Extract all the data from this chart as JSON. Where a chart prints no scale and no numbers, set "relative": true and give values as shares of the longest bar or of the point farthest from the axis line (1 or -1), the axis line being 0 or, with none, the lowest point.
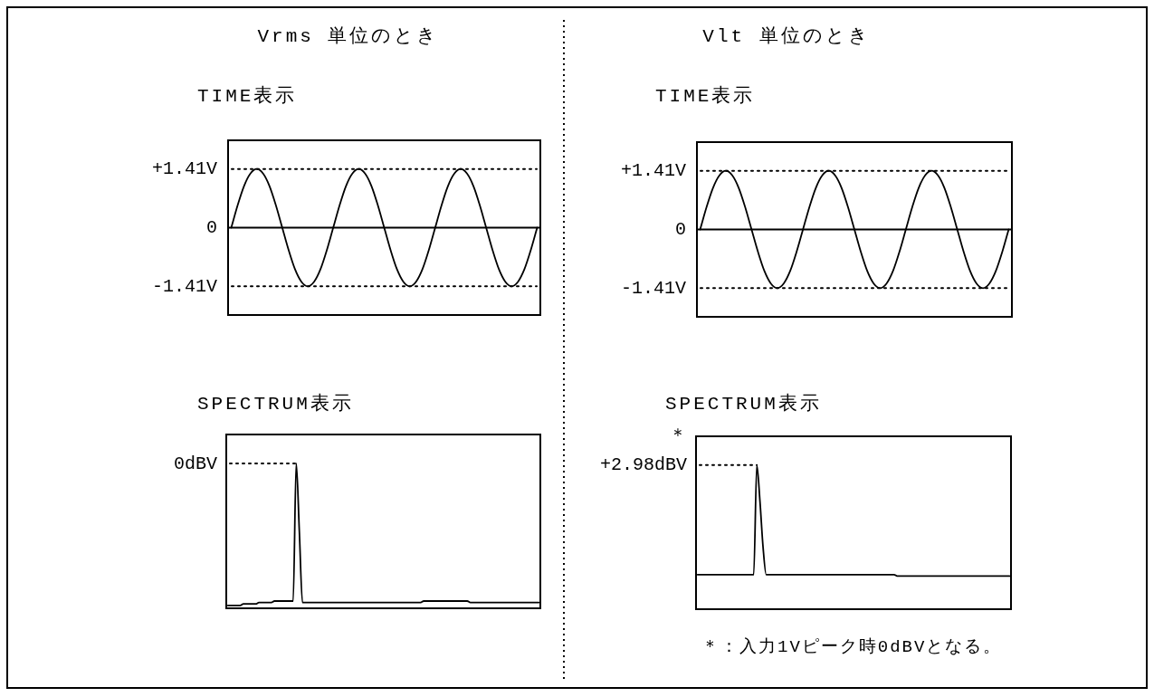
{
  "chart_data": [
    {
      "type": "line",
      "title": "Vrms 単位のとき",
      "subtitle": "TIME表示",
      "tick_labels": "y",
      "ylim": [
        -2.1,
        2.1
      ],
      "yticks": [
        {
          "value": 1.41,
          "label": "+1.41V"
        },
        {
          "value": 0,
          "label": "0"
        },
        {
          "value": -1.41,
          "label": "-1.41V"
        }
      ],
      "ref_lines": [
        {
          "axis": "y",
          "value": 1.41,
          "line_style": "dotted"
        },
        {
          "axis": "y",
          "value": 0,
          "line_style": "solid"
        },
        {
          "axis": "y",
          "value": -1.41,
          "line_style": "dotted"
        }
      ],
      "categories": [
        null,
        null,
        null,
        null,
        null,
        null,
        null,
        null,
        null,
        null,
        null,
        null,
        null,
        null,
        null,
        null,
        null,
        null,
        null,
        null,
        null,
        null,
        null,
        null,
        null,
        null,
        null,
        null,
        null,
        null,
        null,
        null,
        null,
        null,
        null,
        null,
        null,
        null,
        null,
        null,
        null,
        null,
        null,
        null,
        null,
        null,
        null,
        null,
        null
      ],
      "series": [
        {
          "color": "#000000",
          "values": [
            0,
            0.54,
            1,
            1.3,
            1.41,
            1.3,
            1,
            0.54,
            0,
            -0.54,
            -1,
            -1.3,
            -1.41,
            -1.3,
            -1,
            -0.54,
            0,
            0.54,
            1,
            1.3,
            1.41,
            1.3,
            1,
            0.54,
            0,
            -0.54,
            -1,
            -1.3,
            -1.41,
            -1.3,
            -1,
            -0.54,
            0,
            0.54,
            1,
            1.3,
            1.41,
            1.3,
            1,
            0.54,
            0,
            -0.54,
            -1,
            -1.3,
            -1.41,
            -1.3,
            -1,
            -0.54,
            0
          ]
        }
      ]
    },
    {
      "type": "line",
      "title": "SPECTRUM表示",
      "relative": true,
      "tick_labels": false,
      "ref_lines": [
        {
          "axis": "y",
          "value": 1,
          "label": "0dBV",
          "line_style": "dotted"
        }
      ],
      "categories": [
        null,
        null,
        null,
        null,
        null,
        null,
        null,
        null,
        null,
        null,
        null,
        null,
        null,
        null,
        null,
        null,
        null,
        null,
        null,
        null,
        null,
        null,
        null,
        null,
        null,
        null,
        null,
        null,
        null,
        null,
        null,
        null,
        null,
        null,
        null,
        null,
        null,
        null,
        null,
        null,
        null,
        null,
        null,
        null,
        null,
        null,
        null,
        null,
        null,
        null,
        null,
        null,
        null,
        null,
        null,
        null,
        null,
        null,
        null,
        null,
        null,
        null,
        null,
        null,
        null,
        null,
        null,
        null,
        null,
        null,
        null,
        null,
        null,
        null,
        null,
        null,
        null,
        null,
        null,
        null,
        null,
        null,
        null,
        null,
        null,
        null,
        null,
        null,
        null,
        null,
        null,
        null,
        null,
        null,
        null,
        null,
        null,
        null,
        null,
        null,
        null
      ],
      "series": [
        {
          "color": "#000000",
          "values": [
            0.02,
            0.02,
            0.02,
            0.02,
            0.02,
            0.03,
            0.03,
            0.03,
            0.03,
            0.03,
            0.04,
            0.04,
            0.04,
            0.04,
            0.04,
            0.05,
            0.05,
            0.05,
            0.05,
            0.05,
            0.05,
            0.05,
            1,
            0.53,
            0.04,
            0.04,
            0.04,
            0.04,
            0.04,
            0.04,
            0.04,
            0.04,
            0.04,
            0.04,
            0.04,
            0.04,
            0.04,
            0.04,
            0.04,
            0.04,
            0.04,
            0.04,
            0.04,
            0.04,
            0.04,
            0.04,
            0.04,
            0.04,
            0.04,
            0.04,
            0.04,
            0.04,
            0.04,
            0.04,
            0.04,
            0.04,
            0.04,
            0.04,
            0.04,
            0.04,
            0.04,
            0.04,
            0.04,
            0.05,
            0.05,
            0.05,
            0.05,
            0.05,
            0.05,
            0.05,
            0.05,
            0.05,
            0.05,
            0.05,
            0.05,
            0.05,
            0.05,
            0.05,
            0.04,
            0.04,
            0.04,
            0.04,
            0.04,
            0.04,
            0.04,
            0.04,
            0.04,
            0.04,
            0.04,
            0.04,
            0.04,
            0.04,
            0.04,
            0.04,
            0.04,
            0.04,
            0.04,
            0.04,
            0.04,
            0.04,
            0.04
          ]
        }
      ]
    },
    {
      "type": "line",
      "title": "Vlt 単位のとき",
      "subtitle": "TIME表示",
      "tick_labels": "y",
      "ylim": [
        -2.1,
        2.1
      ],
      "yticks": [
        {
          "value": 1.41,
          "label": "+1.41V"
        },
        {
          "value": 0,
          "label": "0"
        },
        {
          "value": -1.41,
          "label": "-1.41V"
        }
      ],
      "ref_lines": [
        {
          "axis": "y",
          "value": 1.41,
          "line_style": "dotted"
        },
        {
          "axis": "y",
          "value": 0,
          "line_style": "solid"
        },
        {
          "axis": "y",
          "value": -1.41,
          "line_style": "dotted"
        }
      ],
      "categories": [
        null,
        null,
        null,
        null,
        null,
        null,
        null,
        null,
        null,
        null,
        null,
        null,
        null,
        null,
        null,
        null,
        null,
        null,
        null,
        null,
        null,
        null,
        null,
        null,
        null,
        null,
        null,
        null,
        null,
        null,
        null,
        null,
        null,
        null,
        null,
        null,
        null,
        null,
        null,
        null,
        null,
        null,
        null,
        null,
        null,
        null,
        null,
        null,
        null
      ],
      "series": [
        {
          "color": "#000000",
          "values": [
            0,
            0.54,
            1,
            1.3,
            1.41,
            1.3,
            1,
            0.54,
            0,
            -0.54,
            -1,
            -1.3,
            -1.41,
            -1.3,
            -1,
            -0.54,
            0,
            0.54,
            1,
            1.3,
            1.41,
            1.3,
            1,
            0.54,
            0,
            -0.54,
            -1,
            -1.3,
            -1.41,
            -1.3,
            -1,
            -0.54,
            0,
            0.54,
            1,
            1.3,
            1.41,
            1.3,
            1,
            0.54,
            0,
            -0.54,
            -1,
            -1.3,
            -1.41,
            -1.3,
            -1,
            -0.54,
            0
          ]
        }
      ]
    },
    {
      "type": "line",
      "title": "SPECTRUM表示",
      "relative": true,
      "tick_labels": false,
      "ref_lines": [
        {
          "axis": "y",
          "value": 1,
          "label": "＊\n+2.98dBV",
          "line_style": "dotted"
        }
      ],
      "annotations": [
        "＊：入力1Vピーク時0dBVとなる。"
      ],
      "categories": [
        null,
        null,
        null,
        null,
        null,
        null,
        null,
        null,
        null,
        null,
        null,
        null,
        null,
        null,
        null,
        null,
        null,
        null,
        null,
        null,
        null,
        null,
        null,
        null,
        null,
        null,
        null,
        null,
        null,
        null,
        null,
        null,
        null,
        null,
        null,
        null,
        null,
        null,
        null,
        null,
        null,
        null,
        null,
        null,
        null,
        null,
        null,
        null,
        null,
        null,
        null,
        null,
        null,
        null,
        null,
        null,
        null,
        null,
        null,
        null,
        null,
        null,
        null,
        null,
        null,
        null,
        null,
        null,
        null,
        null,
        null,
        null,
        null,
        null,
        null,
        null,
        null,
        null,
        null,
        null,
        null,
        null,
        null,
        null,
        null,
        null,
        null,
        null,
        null,
        null,
        null,
        null,
        null,
        null,
        null,
        null,
        null,
        null,
        null,
        null,
        null
      ],
      "series": [
        {
          "color": "#000000",
          "values": [
            0.24,
            0.24,
            0.24,
            0.24,
            0.24,
            0.24,
            0.24,
            0.24,
            0.24,
            0.24,
            0.24,
            0.24,
            0.24,
            0.24,
            0.24,
            0.24,
            0.24,
            0.24,
            0.24,
            1,
            0.75,
            0.43,
            0.24,
            0.24,
            0.24,
            0.24,
            0.24,
            0.24,
            0.24,
            0.24,
            0.24,
            0.24,
            0.24,
            0.24,
            0.24,
            0.24,
            0.24,
            0.24,
            0.24,
            0.24,
            0.24,
            0.24,
            0.24,
            0.24,
            0.24,
            0.24,
            0.24,
            0.24,
            0.24,
            0.24,
            0.24,
            0.24,
            0.24,
            0.24,
            0.24,
            0.24,
            0.24,
            0.24,
            0.24,
            0.24,
            0.24,
            0.24,
            0.24,
            0.24,
            0.23,
            0.23,
            0.23,
            0.23,
            0.23,
            0.23,
            0.23,
            0.23,
            0.23,
            0.23,
            0.23,
            0.23,
            0.23,
            0.23,
            0.23,
            0.23,
            0.23,
            0.23,
            0.23,
            0.23,
            0.23,
            0.23,
            0.23,
            0.23,
            0.23,
            0.23,
            0.23,
            0.23,
            0.23,
            0.23,
            0.23,
            0.23,
            0.23,
            0.23,
            0.23,
            0.23,
            0.23
          ]
        }
      ]
    }
  ]
}
